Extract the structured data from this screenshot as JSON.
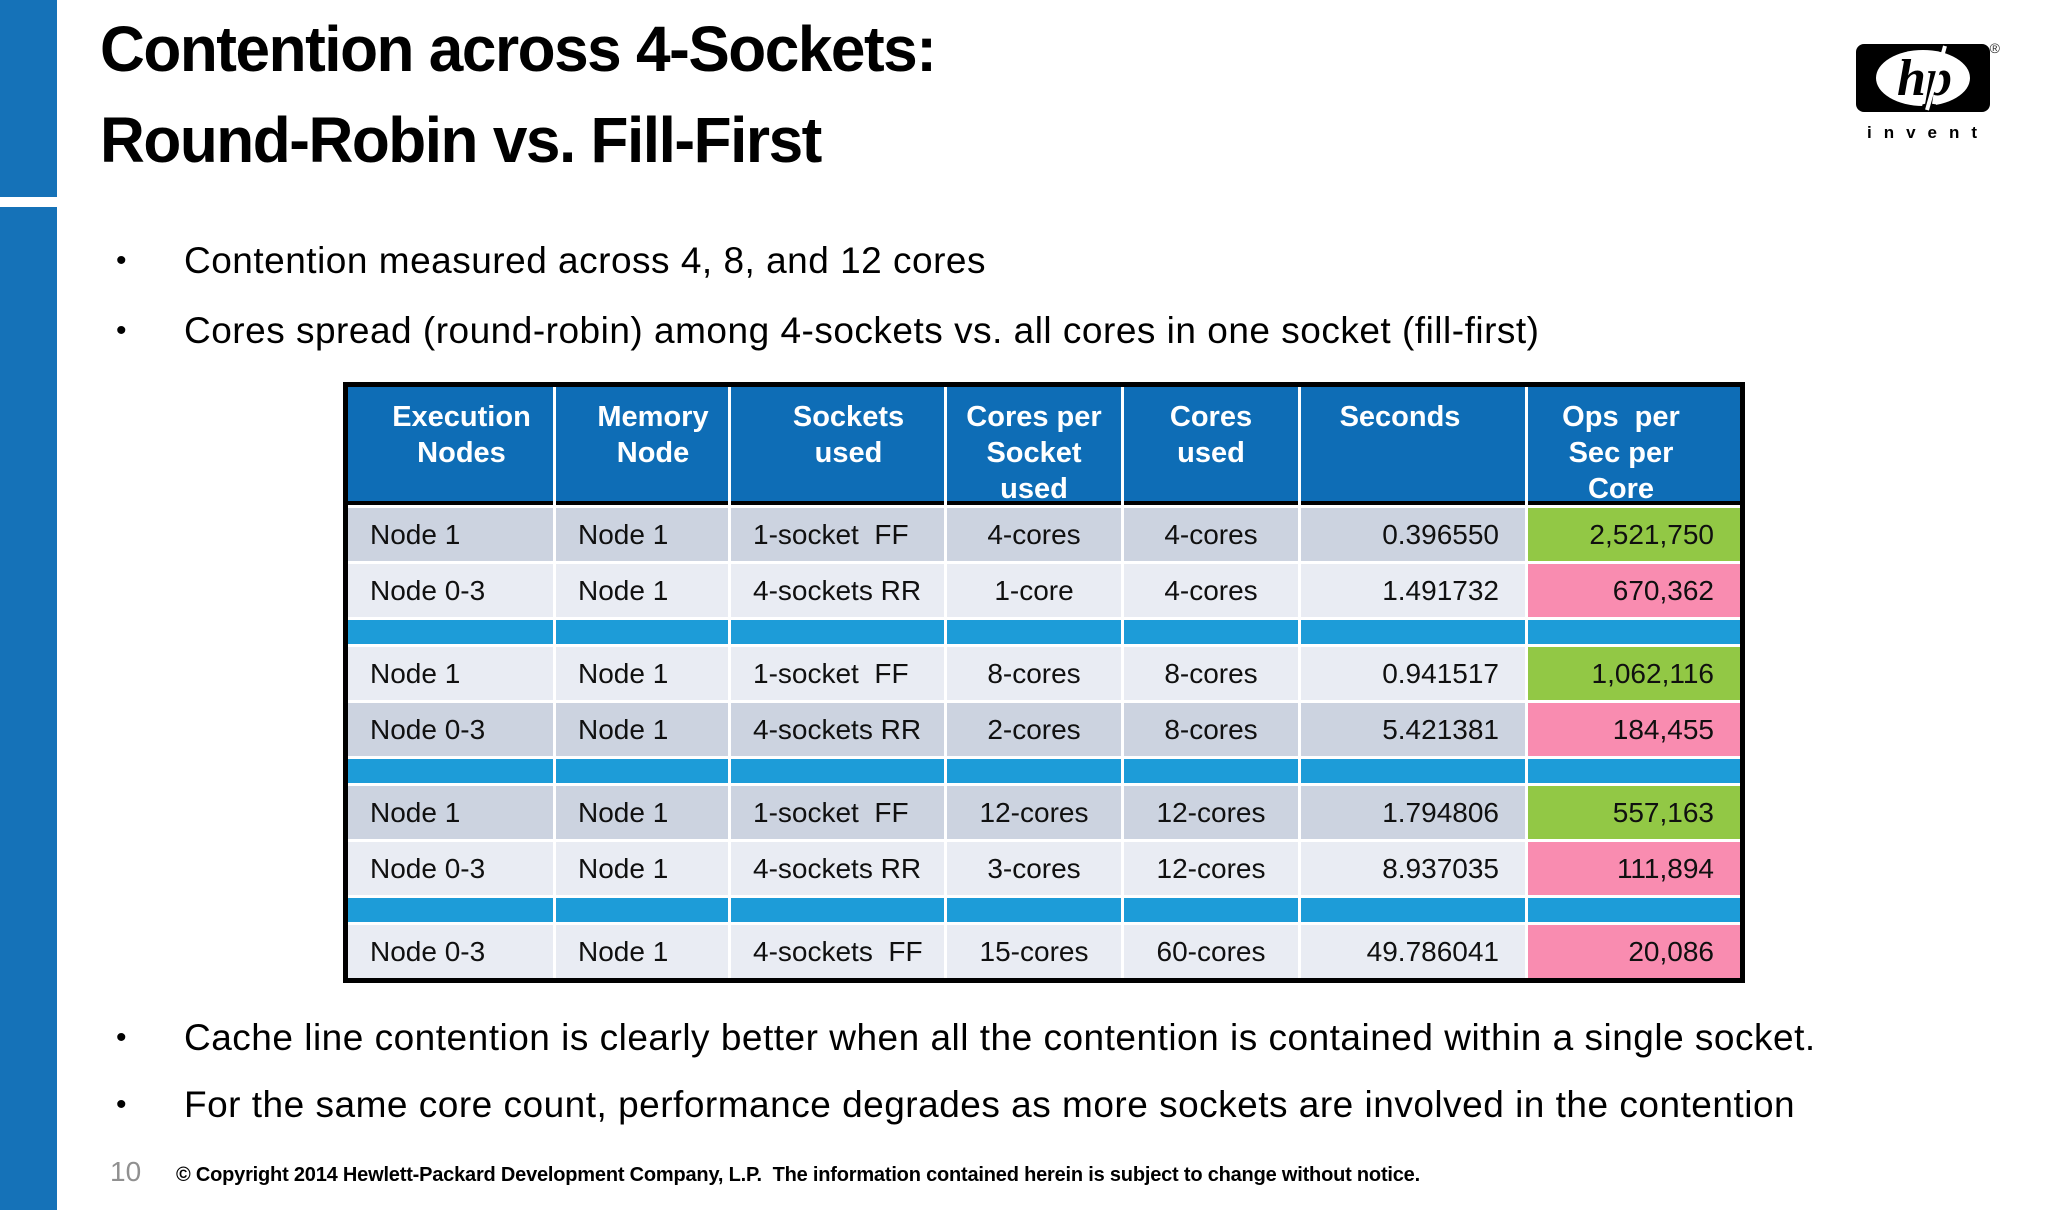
{
  "title": {
    "line1": "Contention across 4-Sockets:",
    "line2": "Round-Robin vs. Fill-First"
  },
  "logo": {
    "hp": "hp",
    "invent": "invent",
    "registered": "®"
  },
  "bullets_top": [
    "Contention measured across 4, 8, and 12 cores",
    "Cores spread (round-robin) among 4-sockets vs. all cores in one socket (fill-first)"
  ],
  "bullets_bottom": [
    "Cache line contention is clearly better when all the contention is contained within a single socket.",
    "For the same core count, performance degrades as more sockets are involved in the contention"
  ],
  "table": {
    "headers": [
      "Execution\nNodes",
      "Memory\nNode",
      "Sockets\nused",
      "Cores per\nSocket\nused",
      "Cores\nused",
      "Seconds",
      "Ops  per\nSec per\nCore"
    ],
    "rows": [
      {
        "type": "data",
        "band": "dark",
        "highlight": "green",
        "cells": [
          "Node 1",
          "Node 1",
          "1-socket  FF",
          "4-cores",
          "4-cores",
          "0.396550",
          "2,521,750"
        ]
      },
      {
        "type": "data",
        "band": "light",
        "highlight": "pink",
        "cells": [
          "Node 0-3",
          "Node 1",
          "4-sockets RR",
          "1-core",
          "4-cores",
          "1.491732",
          "670,362"
        ]
      },
      {
        "type": "separator"
      },
      {
        "type": "data",
        "band": "light",
        "highlight": "green",
        "cells": [
          "Node 1",
          "Node 1",
          "1-socket  FF",
          "8-cores",
          "8-cores",
          "0.941517",
          "1,062,116"
        ]
      },
      {
        "type": "data",
        "band": "dark",
        "highlight": "pink",
        "cells": [
          "Node 0-3",
          "Node 1",
          "4-sockets RR",
          "2-cores",
          "8-cores",
          "5.421381",
          "184,455"
        ]
      },
      {
        "type": "separator"
      },
      {
        "type": "data",
        "band": "dark",
        "highlight": "green",
        "cells": [
          "Node 1",
          "Node 1",
          "1-socket  FF",
          "12-cores",
          "12-cores",
          "1.794806",
          "557,163"
        ]
      },
      {
        "type": "data",
        "band": "light",
        "highlight": "pink",
        "cells": [
          "Node 0-3",
          "Node 1",
          "4-sockets RR",
          "3-cores",
          "12-cores",
          "8.937035",
          "111,894"
        ]
      },
      {
        "type": "separator"
      },
      {
        "type": "data",
        "band": "light",
        "highlight": "pink",
        "cells": [
          "Node 0-3",
          "Node 1",
          "4-sockets  FF",
          "15-cores",
          "60-cores",
          "49.786041",
          "20,086"
        ]
      }
    ]
  },
  "footer": {
    "page_number": "10",
    "copyright": "© Copyright 2014 Hewlett-Packard Development Company, L.P.  The information contained herein is subject to change without notice."
  },
  "colors": {
    "bar_blue": "#1572B8",
    "header_blue": "#0E6DB6",
    "separator_blue": "#1D9CD8",
    "row_dark": "#CCD3E0",
    "row_light": "#E9ECF3",
    "green": "#92C845",
    "pink": "#F98CB0"
  }
}
